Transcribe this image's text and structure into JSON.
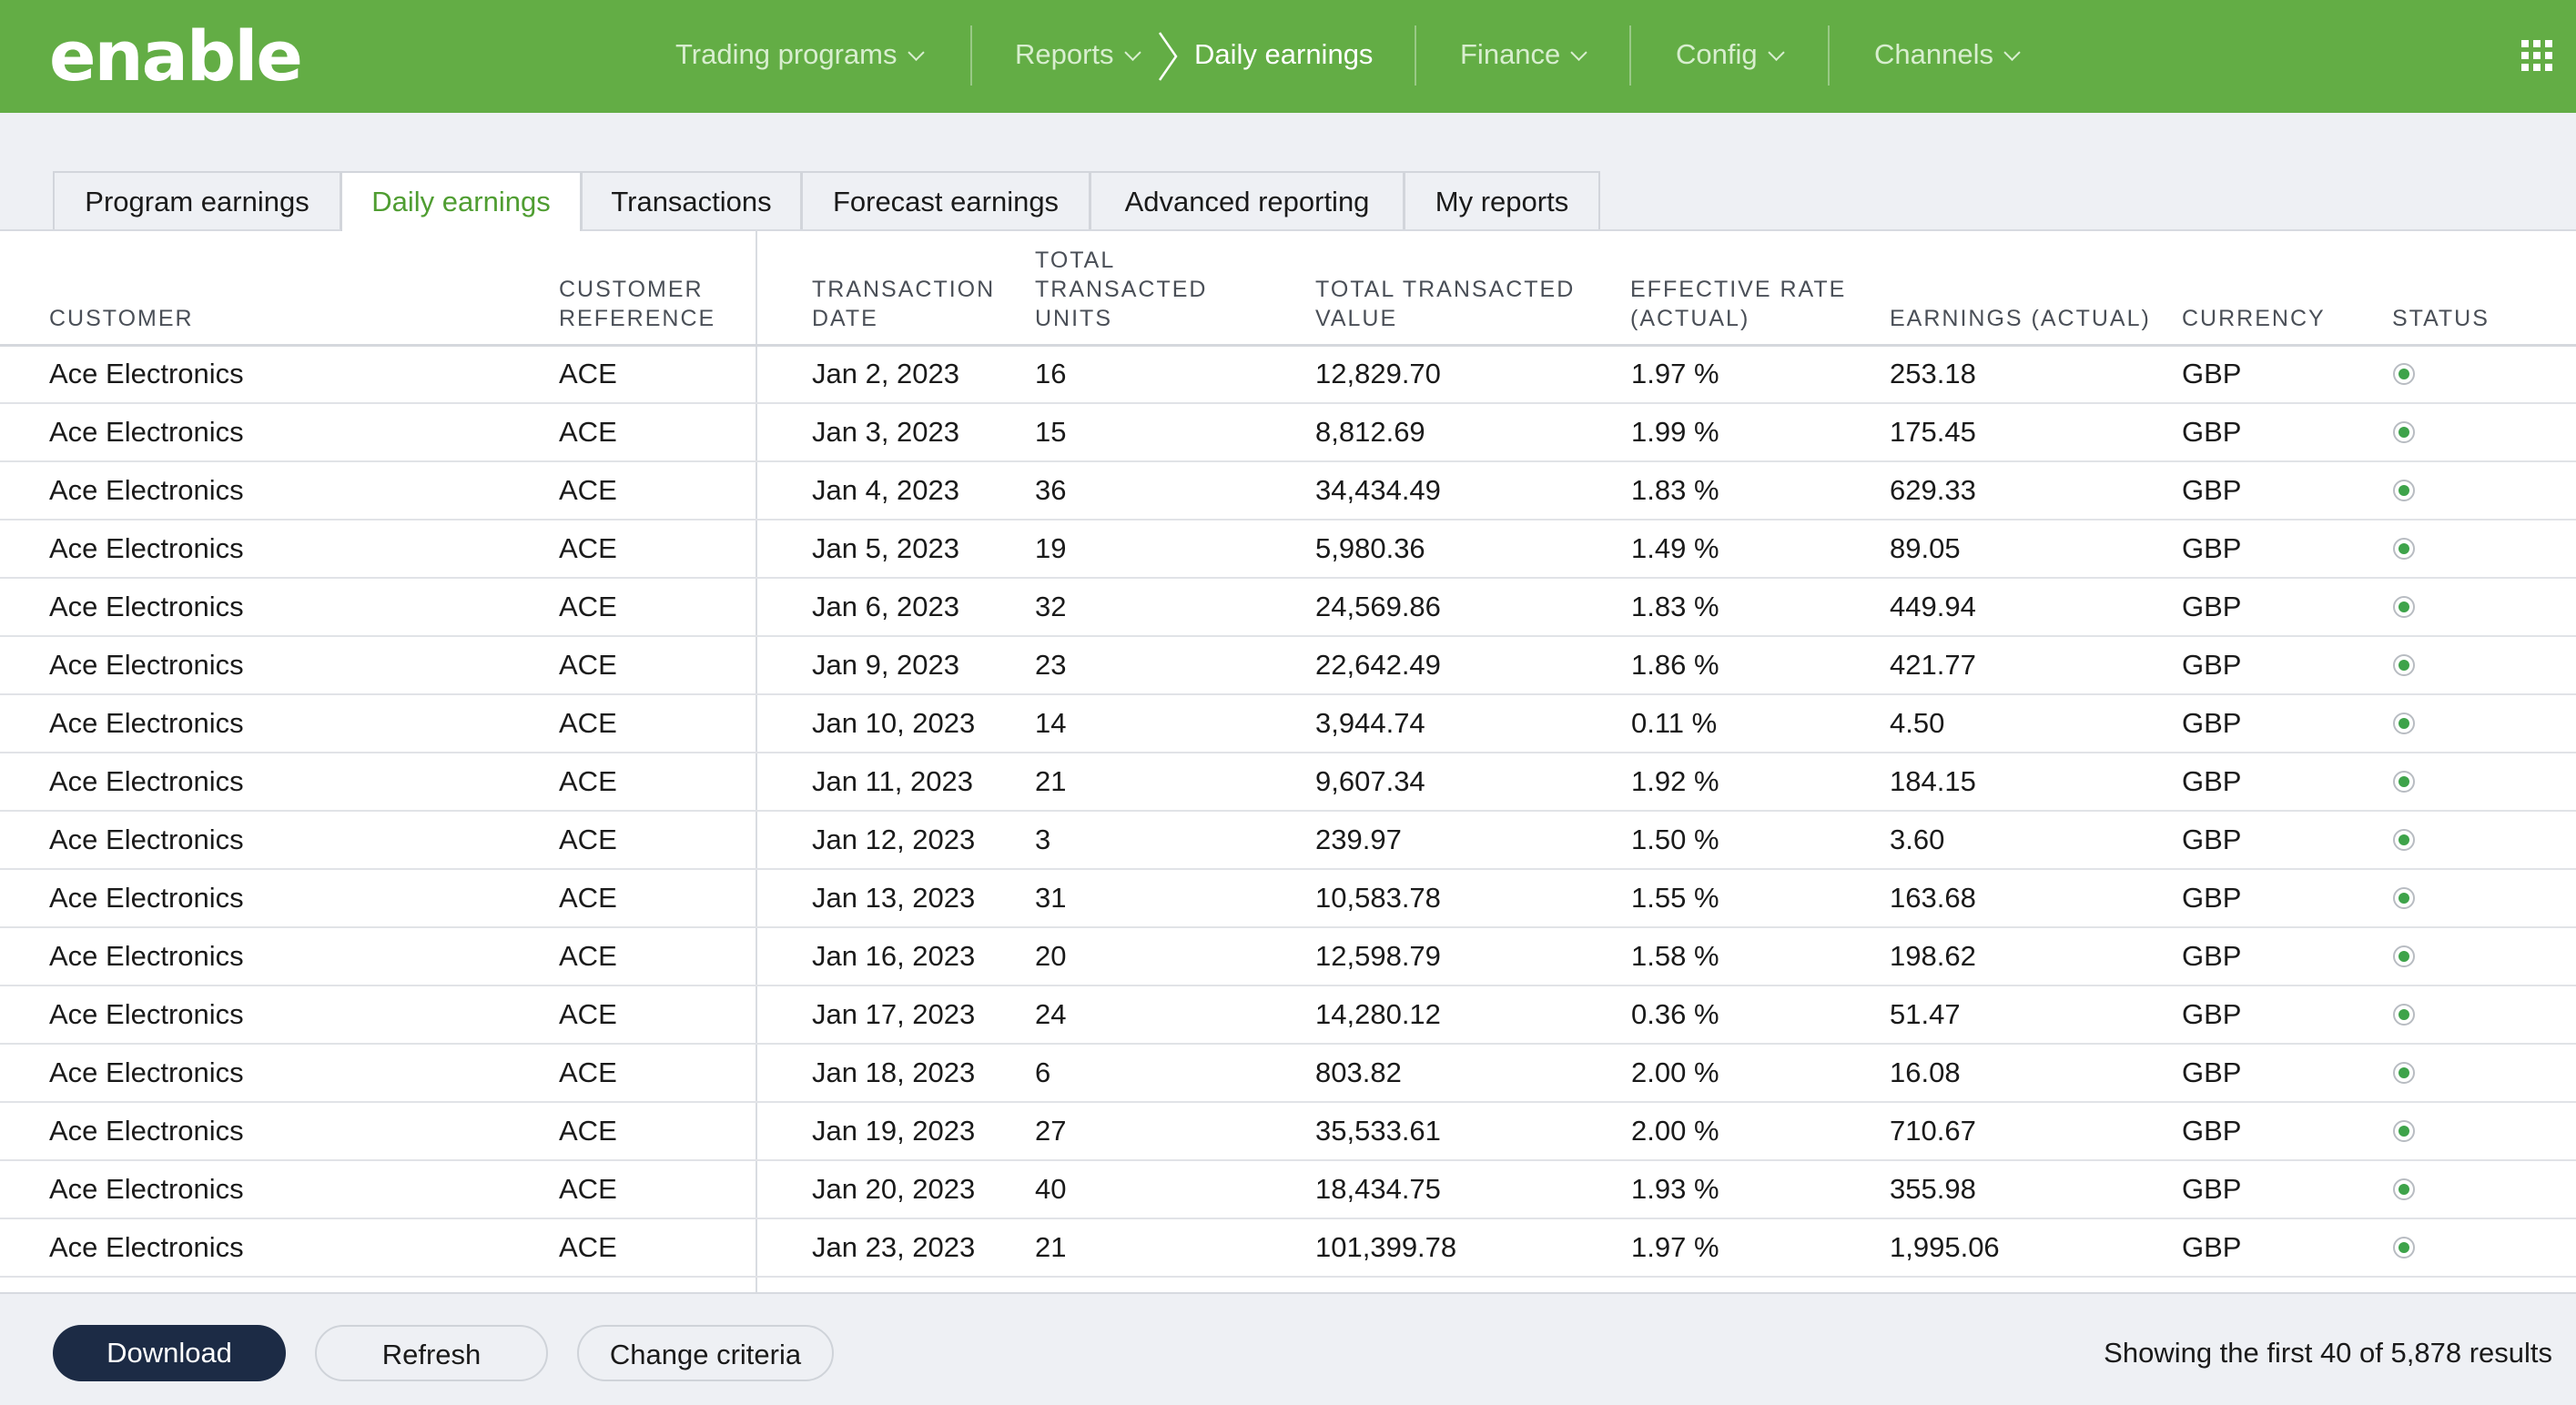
{
  "app": {
    "logo": "enable"
  },
  "nav": {
    "items": [
      {
        "label": "Trading programs"
      },
      {
        "label": "Reports"
      },
      {
        "label": "Daily earnings"
      },
      {
        "label": "Finance"
      },
      {
        "label": "Config"
      },
      {
        "label": "Channels"
      }
    ],
    "apps_icon": "apps-grid-icon"
  },
  "tabs": [
    {
      "label": "Program earnings"
    },
    {
      "label": "Daily earnings",
      "active": true
    },
    {
      "label": "Transactions"
    },
    {
      "label": "Forecast earnings"
    },
    {
      "label": "Advanced reporting"
    },
    {
      "label": "My reports"
    }
  ],
  "table": {
    "headers": {
      "customer": "CUSTOMER",
      "customer_reference": [
        "CUSTOMER",
        "REFERENCE"
      ],
      "transaction_date": [
        "TRANSACTION",
        "DATE"
      ],
      "total_units": [
        "TOTAL",
        "TRANSACTED",
        "UNITS"
      ],
      "total_value": [
        "TOTAL TRANSACTED",
        "VALUE"
      ],
      "effective_rate": [
        "EFFECTIVE RATE",
        "(ACTUAL)"
      ],
      "earnings": "EARNINGS (ACTUAL)",
      "currency": "CURRENCY",
      "status": "STATUS"
    },
    "rows": [
      {
        "customer": "Ace Electronics",
        "ref": "ACE",
        "date": "Jan 2, 2023",
        "units": "16",
        "value": "12,829.70",
        "rate": "1.97 %",
        "earnings": "253.18",
        "currency": "GBP",
        "status": "active"
      },
      {
        "customer": "Ace Electronics",
        "ref": "ACE",
        "date": "Jan 3, 2023",
        "units": "15",
        "value": "8,812.69",
        "rate": "1.99 %",
        "earnings": "175.45",
        "currency": "GBP",
        "status": "active"
      },
      {
        "customer": "Ace Electronics",
        "ref": "ACE",
        "date": "Jan 4, 2023",
        "units": "36",
        "value": "34,434.49",
        "rate": "1.83 %",
        "earnings": "629.33",
        "currency": "GBP",
        "status": "active"
      },
      {
        "customer": "Ace Electronics",
        "ref": "ACE",
        "date": "Jan 5, 2023",
        "units": "19",
        "value": "5,980.36",
        "rate": "1.49 %",
        "earnings": "89.05",
        "currency": "GBP",
        "status": "active"
      },
      {
        "customer": "Ace Electronics",
        "ref": "ACE",
        "date": "Jan 6, 2023",
        "units": "32",
        "value": "24,569.86",
        "rate": "1.83 %",
        "earnings": "449.94",
        "currency": "GBP",
        "status": "active"
      },
      {
        "customer": "Ace Electronics",
        "ref": "ACE",
        "date": "Jan 9, 2023",
        "units": "23",
        "value": "22,642.49",
        "rate": "1.86 %",
        "earnings": "421.77",
        "currency": "GBP",
        "status": "active"
      },
      {
        "customer": "Ace Electronics",
        "ref": "ACE",
        "date": "Jan 10, 2023",
        "units": "14",
        "value": "3,944.74",
        "rate": "0.11 %",
        "earnings": "4.50",
        "currency": "GBP",
        "status": "active"
      },
      {
        "customer": "Ace Electronics",
        "ref": "ACE",
        "date": "Jan 11, 2023",
        "units": "21",
        "value": "9,607.34",
        "rate": "1.92 %",
        "earnings": "184.15",
        "currency": "GBP",
        "status": "active"
      },
      {
        "customer": "Ace Electronics",
        "ref": "ACE",
        "date": "Jan 12, 2023",
        "units": "3",
        "value": "239.97",
        "rate": "1.50 %",
        "earnings": "3.60",
        "currency": "GBP",
        "status": "active"
      },
      {
        "customer": "Ace Electronics",
        "ref": "ACE",
        "date": "Jan 13, 2023",
        "units": "31",
        "value": "10,583.78",
        "rate": "1.55 %",
        "earnings": "163.68",
        "currency": "GBP",
        "status": "active"
      },
      {
        "customer": "Ace Electronics",
        "ref": "ACE",
        "date": "Jan 16, 2023",
        "units": "20",
        "value": "12,598.79",
        "rate": "1.58 %",
        "earnings": "198.62",
        "currency": "GBP",
        "status": "active"
      },
      {
        "customer": "Ace Electronics",
        "ref": "ACE",
        "date": "Jan 17, 2023",
        "units": "24",
        "value": "14,280.12",
        "rate": "0.36 %",
        "earnings": "51.47",
        "currency": "GBP",
        "status": "active"
      },
      {
        "customer": "Ace Electronics",
        "ref": "ACE",
        "date": "Jan 18, 2023",
        "units": "6",
        "value": "803.82",
        "rate": "2.00 %",
        "earnings": "16.08",
        "currency": "GBP",
        "status": "active"
      },
      {
        "customer": "Ace Electronics",
        "ref": "ACE",
        "date": "Jan 19, 2023",
        "units": "27",
        "value": "35,533.61",
        "rate": "2.00 %",
        "earnings": "710.67",
        "currency": "GBP",
        "status": "active"
      },
      {
        "customer": "Ace Electronics",
        "ref": "ACE",
        "date": "Jan 20, 2023",
        "units": "40",
        "value": "18,434.75",
        "rate": "1.93 %",
        "earnings": "355.98",
        "currency": "GBP",
        "status": "active"
      },
      {
        "customer": "Ace Electronics",
        "ref": "ACE",
        "date": "Jan 23, 2023",
        "units": "21",
        "value": "101,399.78",
        "rate": "1.97 %",
        "earnings": "1,995.06",
        "currency": "GBP",
        "status": "active"
      }
    ]
  },
  "footer": {
    "download_label": "Download",
    "refresh_label": "Refresh",
    "change_criteria_label": "Change criteria",
    "results_text": "Showing the first 40 of 5,878 results"
  },
  "colors": {
    "brand_green": "#63ad45",
    "active_tab_text": "#4f9d31",
    "primary_button": "#1c2b45",
    "status_active": "#3ea34a"
  }
}
